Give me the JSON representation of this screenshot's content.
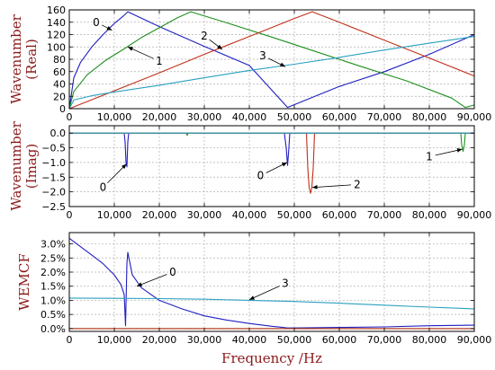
{
  "chart_data": [
    {
      "type": "line",
      "ylabel": "Wavenumber\n(Real)",
      "xlim": [
        0,
        90000
      ],
      "ylim": [
        0,
        160
      ],
      "xticks": [
        0,
        10000,
        20000,
        30000,
        40000,
        50000,
        60000,
        70000,
        80000,
        90000
      ],
      "xtick_labels": [
        "0",
        "10,000",
        "20,000",
        "30,000",
        "40,000",
        "50,000",
        "60,000",
        "70,000",
        "80,000",
        "90,000"
      ],
      "yticks": [
        0,
        20,
        40,
        60,
        80,
        100,
        120,
        140,
        160
      ],
      "ytick_labels": [
        "0",
        "20",
        "40",
        "60",
        "80",
        "100",
        "120",
        "140",
        "160"
      ],
      "grid": true,
      "series": [
        {
          "name": "0",
          "color": "#1f1fbf",
          "x": [
            0,
            1000,
            2500,
            5000,
            7500,
            10000,
            12000,
            13000,
            20000,
            30000,
            40000,
            48500,
            60000,
            70000,
            80000,
            90000
          ],
          "y": [
            0,
            50,
            75,
            100,
            120,
            138,
            150,
            157,
            133,
            101,
            70,
            2,
            36,
            60,
            88,
            120
          ]
        },
        {
          "name": "1",
          "color": "#1f8f1f",
          "x": [
            0,
            1000,
            4000,
            8000,
            12000,
            16000,
            20000,
            24000,
            27000,
            35000,
            45000,
            55000,
            65000,
            75000,
            85000,
            88000,
            90000
          ],
          "y": [
            0,
            28,
            55,
            78,
            96,
            115,
            131,
            147,
            157,
            139,
            116,
            92,
            68,
            45,
            17,
            2,
            6
          ]
        },
        {
          "name": "2",
          "color": "#c0301a",
          "x": [
            0,
            10000,
            20000,
            30000,
            40000,
            50000,
            54000,
            60000,
            70000,
            80000,
            90000
          ],
          "y": [
            0,
            29,
            58,
            88,
            117,
            146,
            157,
            140,
            111,
            82,
            53
          ]
        },
        {
          "name": "3",
          "color": "#2aa0c0",
          "x": [
            0,
            1000,
            5000,
            10000,
            20000,
            30000,
            40000,
            50000,
            60000,
            70000,
            80000,
            90000
          ],
          "y": [
            0,
            14,
            21,
            27,
            38,
            50,
            62,
            72,
            83,
            95,
            106,
            117
          ]
        }
      ],
      "annotations": [
        {
          "text": "0",
          "x": 6000,
          "y": 140
        },
        {
          "text": "1",
          "x": 20000,
          "y": 77
        },
        {
          "text": "2",
          "x": 30000,
          "y": 118
        },
        {
          "text": "3",
          "x": 43000,
          "y": 86
        }
      ]
    },
    {
      "type": "line",
      "ylabel": "Wavenumber\n(Imag)",
      "xlim": [
        0,
        90000
      ],
      "ylim": [
        -2.5,
        0.25
      ],
      "xticks": [
        0,
        10000,
        20000,
        30000,
        40000,
        50000,
        60000,
        70000,
        80000,
        90000
      ],
      "xtick_labels": [
        "0",
        "10,000",
        "20,000",
        "30,000",
        "40,000",
        "50,000",
        "60,000",
        "70,000",
        "80,000",
        "90,000"
      ],
      "yticks": [
        0.0,
        -0.5,
        -1.0,
        -1.5,
        -2.0,
        -2.5
      ],
      "ytick_labels": [
        "0.0",
        "−0.5",
        "−1.0",
        "−1.5",
        "−2.0",
        "−2.5"
      ],
      "grid": true,
      "series": [
        {
          "name": "0",
          "color": "#1f1fbf",
          "x": [
            0,
            12200,
            12400,
            12600,
            12800,
            13000,
            13200,
            47800,
            48200,
            48500,
            48800,
            49000,
            90000
          ],
          "y": [
            0,
            0,
            -0.3,
            -1.0,
            -1.15,
            -0.3,
            0,
            0,
            -0.5,
            -1.1,
            -0.5,
            0,
            0
          ]
        },
        {
          "name": "1",
          "color": "#1f8f1f",
          "x": [
            0,
            26000,
            26200,
            26400,
            87000,
            87200,
            87500,
            87800,
            88000,
            90000
          ],
          "y": [
            0,
            0,
            -0.08,
            0,
            0,
            -0.4,
            -0.62,
            -0.4,
            0,
            0
          ]
        },
        {
          "name": "2",
          "color": "#c0301a",
          "x": [
            0,
            52700,
            53000,
            53300,
            53600,
            53900,
            54200,
            54500,
            90000
          ],
          "y": [
            0,
            0,
            -1.2,
            -1.85,
            -2.05,
            -1.85,
            -1.2,
            0,
            0
          ]
        },
        {
          "name": "3",
          "color": "#2aa0c0",
          "x": [
            0,
            90000
          ],
          "y": [
            0,
            0
          ]
        }
      ],
      "annotations": [
        {
          "text": "0",
          "x": 7500,
          "y": -1.85
        },
        {
          "text": "0",
          "x": 42500,
          "y": -1.45
        },
        {
          "text": "2",
          "x": 64000,
          "y": -1.75
        },
        {
          "text": "1",
          "x": 80000,
          "y": -0.8
        }
      ]
    },
    {
      "type": "line",
      "ylabel": "WEMCF",
      "xlabel": "Frequency /Hz",
      "xlim": [
        0,
        90000
      ],
      "ylim": [
        -0.1,
        3.4
      ],
      "xticks": [
        0,
        10000,
        20000,
        30000,
        40000,
        50000,
        60000,
        70000,
        80000,
        90000
      ],
      "xtick_labels": [
        "0",
        "10,000",
        "20,000",
        "30,000",
        "40,000",
        "50,000",
        "60,000",
        "70,000",
        "80,000",
        "90,000"
      ],
      "yticks": [
        0.0,
        0.5,
        1.0,
        1.5,
        2.0,
        2.5,
        3.0
      ],
      "ytick_labels": [
        "0.0%",
        "0.5%",
        "1.0%",
        "1.5%",
        "2.0%",
        "2.5%",
        "3.0%"
      ],
      "grid": true,
      "series": [
        {
          "name": "0",
          "color": "#1f1fbf",
          "x": [
            0,
            2500,
            5000,
            7500,
            10000,
            11500,
            12200,
            12500,
            12800,
            13000,
            14000,
            16000,
            20000,
            25000,
            30000,
            35000,
            40000,
            45000,
            47000,
            48500,
            50000,
            60000,
            70000,
            80000,
            90000
          ],
          "y": [
            3.2,
            2.9,
            2.6,
            2.3,
            1.9,
            1.55,
            1.2,
            0.1,
            2.3,
            2.7,
            1.9,
            1.45,
            1.0,
            0.7,
            0.45,
            0.3,
            0.18,
            0.08,
            0.05,
            0.02,
            0.02,
            0.04,
            0.06,
            0.1,
            0.12
          ]
        },
        {
          "name": "1",
          "color": "#1f8f1f",
          "x": [
            0,
            90000
          ],
          "y": [
            0.0,
            0.0
          ]
        },
        {
          "name": "2",
          "color": "#c0301a",
          "x": [
            0,
            90000
          ],
          "y": [
            0.0,
            0.0
          ]
        },
        {
          "name": "3",
          "color": "#2aa0c0",
          "x": [
            0,
            10000,
            20000,
            30000,
            40000,
            50000,
            60000,
            70000,
            80000,
            90000
          ],
          "y": [
            1.08,
            1.07,
            1.06,
            1.04,
            1.0,
            0.96,
            0.9,
            0.83,
            0.76,
            0.7
          ]
        }
      ],
      "annotations": [
        {
          "text": "0",
          "x": 23000,
          "y": 2.0
        },
        {
          "text": "3",
          "x": 48000,
          "y": 1.6
        }
      ]
    }
  ]
}
